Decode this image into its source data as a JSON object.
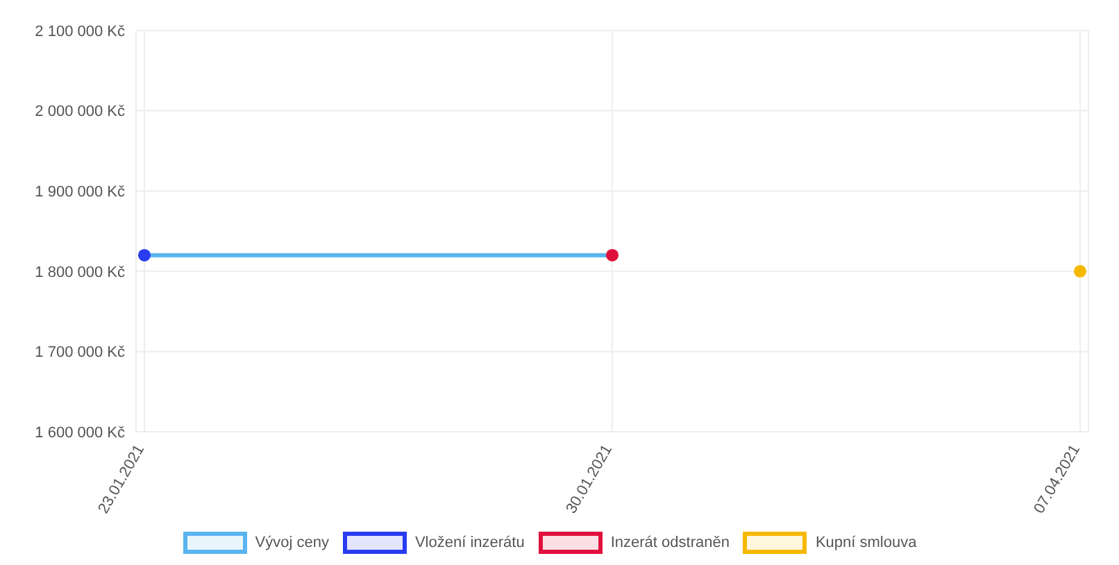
{
  "chart_data": {
    "type": "line",
    "categories": [
      "23.01.2021",
      "30.01.2021",
      "07.04.2021"
    ],
    "series": [
      {
        "name": "Vývoj ceny",
        "type": "line",
        "color": "#5ab4f0",
        "marker": "none",
        "values": [
          1820000,
          1820000,
          null
        ]
      },
      {
        "name": "Vložení inzerátu",
        "type": "scatter",
        "marker": "circle",
        "color": "#2a3cf0",
        "values": [
          1820000,
          null,
          null
        ]
      },
      {
        "name": "Inzerát odstraněn",
        "type": "scatter",
        "marker": "circle",
        "color": "#e0103c",
        "values": [
          null,
          1820000,
          null
        ]
      },
      {
        "name": "Kupní smlouva",
        "type": "scatter",
        "marker": "circle",
        "color": "#f5b800",
        "values": [
          null,
          null,
          1800000
        ]
      }
    ],
    "ylim": [
      1600000,
      2100000
    ],
    "yticks": [
      {
        "value": 1600000,
        "label": "1 600 000 Kč"
      },
      {
        "value": 1700000,
        "label": "1 700 000 Kč"
      },
      {
        "value": 1800000,
        "label": "1 800 000 Kč"
      },
      {
        "value": 1900000,
        "label": "1 900 000 Kč"
      },
      {
        "value": 2000000,
        "label": "2 000 000 Kč"
      },
      {
        "value": 2100000,
        "label": "2 100 000 Kč"
      }
    ],
    "grid": true,
    "legend": "bottom"
  }
}
